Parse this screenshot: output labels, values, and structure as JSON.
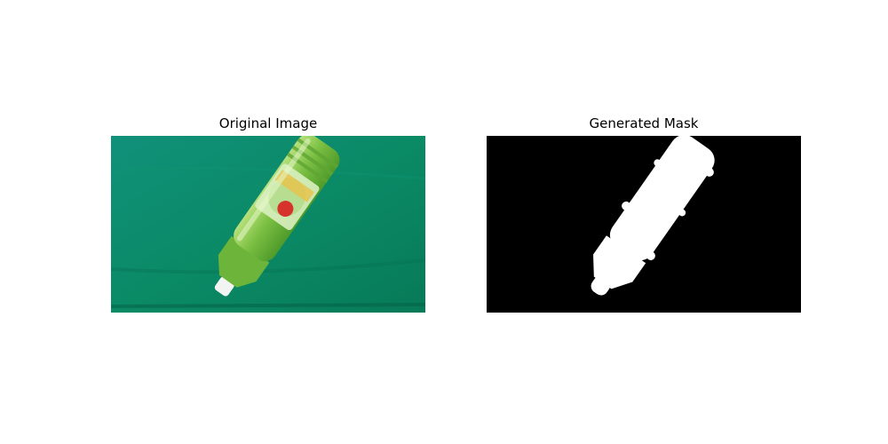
{
  "figure": {
    "left_panel": {
      "title": "Original Image",
      "background_color": "#0b8a66",
      "subject": "green bottle on green cloth"
    },
    "right_panel": {
      "title": "Generated Mask",
      "background_color": "#000000",
      "mask_color": "#ffffff"
    }
  }
}
